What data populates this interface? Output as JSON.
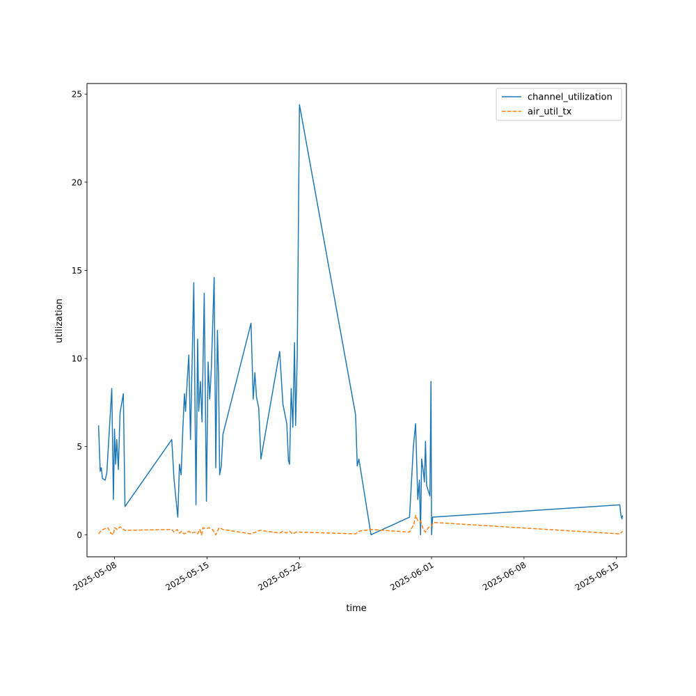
{
  "chart_data": {
    "type": "line",
    "xlabel": "time",
    "ylabel": "utilization",
    "x_range": [
      "2025-05-05T22:00",
      "2025-06-15T18:00"
    ],
    "ylim": [
      -1.25,
      25.6
    ],
    "x_ticks": [
      "2025-05-08",
      "2025-05-15",
      "2025-05-22",
      "2025-06-01",
      "2025-06-08",
      "2025-06-15"
    ],
    "y_ticks": [
      0,
      5,
      10,
      15,
      20,
      25
    ],
    "grid": false,
    "legend_position": "top-right",
    "series": [
      {
        "name": "channel_utilization",
        "color": "#1f77b4",
        "dash": "solid",
        "points": [
          [
            "2025-05-06T19:00",
            6.2
          ],
          [
            "2025-05-06T22:00",
            3.6
          ],
          [
            "2025-05-07T00:00",
            3.8
          ],
          [
            "2025-05-07T02:00",
            3.2
          ],
          [
            "2025-05-07T07:00",
            3.1
          ],
          [
            "2025-05-07T10:00",
            3.5
          ],
          [
            "2025-05-07T19:00",
            8.3
          ],
          [
            "2025-05-07T22:00",
            2.0
          ],
          [
            "2025-05-08T00:00",
            6.0
          ],
          [
            "2025-05-08T02:00",
            4.0
          ],
          [
            "2025-05-08T04:00",
            5.4
          ],
          [
            "2025-05-08T07:00",
            3.7
          ],
          [
            "2025-05-08T10:00",
            6.9
          ],
          [
            "2025-05-08T16:00",
            8.0
          ],
          [
            "2025-05-08T19:00",
            1.6
          ],
          [
            "2025-05-12T08:00",
            5.4
          ],
          [
            "2025-05-12T12:00",
            3.2
          ],
          [
            "2025-05-12T16:00",
            1.9
          ],
          [
            "2025-05-12T19:00",
            1.0
          ],
          [
            "2025-05-12T22:00",
            4.0
          ],
          [
            "2025-05-13T01:00",
            3.4
          ],
          [
            "2025-05-13T04:00",
            5.9
          ],
          [
            "2025-05-13T07:00",
            8.0
          ],
          [
            "2025-05-13T09:00",
            7.0
          ],
          [
            "2025-05-13T12:00",
            8.7
          ],
          [
            "2025-05-13T15:00",
            10.2
          ],
          [
            "2025-05-13T18:00",
            5.4
          ],
          [
            "2025-05-14T00:00",
            14.3
          ],
          [
            "2025-05-14T04:00",
            1.7
          ],
          [
            "2025-05-14T07:00",
            11.1
          ],
          [
            "2025-05-14T09:00",
            7.0
          ],
          [
            "2025-05-14T12:00",
            8.7
          ],
          [
            "2025-05-14T15:00",
            6.4
          ],
          [
            "2025-05-14T19:00",
            13.7
          ],
          [
            "2025-05-14T23:00",
            1.9
          ],
          [
            "2025-05-15T02:00",
            9.8
          ],
          [
            "2025-05-15T05:00",
            7.7
          ],
          [
            "2025-05-15T08:00",
            9.5
          ],
          [
            "2025-05-15T13:00",
            14.6
          ],
          [
            "2025-05-15T16:00",
            3.8
          ],
          [
            "2025-05-15T19:00",
            11.6
          ],
          [
            "2025-05-15T21:00",
            9.0
          ],
          [
            "2025-05-15T23:00",
            3.4
          ],
          [
            "2025-05-16T02:00",
            3.9
          ],
          [
            "2025-05-16T05:00",
            5.7
          ],
          [
            "2025-05-18T08:00",
            12.0
          ],
          [
            "2025-05-18T12:00",
            7.7
          ],
          [
            "2025-05-18T15:00",
            9.2
          ],
          [
            "2025-05-18T18:00",
            7.8
          ],
          [
            "2025-05-18T22:00",
            7.2
          ],
          [
            "2025-05-19T02:00",
            4.3
          ],
          [
            "2025-05-20T12:00",
            10.4
          ],
          [
            "2025-05-20T18:00",
            7.4
          ],
          [
            "2025-05-21T01:00",
            6.3
          ],
          [
            "2025-05-21T04:00",
            4.2
          ],
          [
            "2025-05-21T06:00",
            4.0
          ],
          [
            "2025-05-21T09:00",
            8.3
          ],
          [
            "2025-05-21T12:00",
            6.1
          ],
          [
            "2025-05-21T15:00",
            10.9
          ],
          [
            "2025-05-21T17:00",
            6.2
          ],
          [
            "2025-05-21T20:00",
            10.2
          ],
          [
            "2025-05-22T00:00",
            24.4
          ],
          [
            "2025-05-26T06:00",
            6.8
          ],
          [
            "2025-05-26T09:00",
            3.9
          ],
          [
            "2025-05-26T12:00",
            4.3
          ],
          [
            "2025-05-27T10:00",
            0.0
          ],
          [
            "2025-05-30T08:00",
            1.0
          ],
          [
            "2025-05-30T15:00",
            5.0
          ],
          [
            "2025-05-30T19:00",
            6.3
          ],
          [
            "2025-05-30T23:00",
            2.0
          ],
          [
            "2025-05-31T02:00",
            3.1
          ],
          [
            "2025-05-31T04:00",
            0.0
          ],
          [
            "2025-05-31T06:00",
            4.3
          ],
          [
            "2025-05-31T09:00",
            3.6
          ],
          [
            "2025-05-31T11:00",
            3.0
          ],
          [
            "2025-05-31T13:00",
            5.3
          ],
          [
            "2025-05-31T15:00",
            2.8
          ],
          [
            "2025-05-31T21:00",
            2.2
          ],
          [
            "2025-05-31T23:00",
            8.7
          ],
          [
            "2025-06-01T00:00",
            0.0
          ],
          [
            "2025-06-01T02:00",
            1.0
          ],
          [
            "2025-06-15T06:00",
            1.7
          ],
          [
            "2025-06-15T08:00",
            1.1
          ],
          [
            "2025-06-15T10:00",
            0.9
          ],
          [
            "2025-06-15T11:00",
            1.1
          ]
        ]
      },
      {
        "name": "air_util_tx",
        "color": "#ff7f0e",
        "dash": "dashed",
        "points": [
          [
            "2025-05-06T19:00",
            0.05
          ],
          [
            "2025-05-07T00:00",
            0.25
          ],
          [
            "2025-05-07T07:00",
            0.35
          ],
          [
            "2025-05-07T12:00",
            0.4
          ],
          [
            "2025-05-07T17:00",
            0.1
          ],
          [
            "2025-05-07T22:00",
            0.0
          ],
          [
            "2025-05-08T00:00",
            0.4
          ],
          [
            "2025-05-08T05:00",
            0.3
          ],
          [
            "2025-05-08T10:00",
            0.45
          ],
          [
            "2025-05-08T19:00",
            0.25
          ],
          [
            "2025-05-12T08:00",
            0.3
          ],
          [
            "2025-05-12T12:00",
            0.15
          ],
          [
            "2025-05-12T18:00",
            0.3
          ],
          [
            "2025-05-12T22:00",
            0.1
          ],
          [
            "2025-05-13T02:00",
            0.2
          ],
          [
            "2025-05-13T06:00",
            0.05
          ],
          [
            "2025-05-13T10:00",
            0.1
          ],
          [
            "2025-05-13T15:00",
            0.2
          ],
          [
            "2025-05-13T20:00",
            0.1
          ],
          [
            "2025-05-14T02:00",
            0.15
          ],
          [
            "2025-05-14T07:00",
            0.05
          ],
          [
            "2025-05-14T11:00",
            0.3
          ],
          [
            "2025-05-14T14:00",
            0.0
          ],
          [
            "2025-05-14T17:00",
            0.4
          ],
          [
            "2025-05-14T22:00",
            0.35
          ],
          [
            "2025-05-15T04:00",
            0.4
          ],
          [
            "2025-05-15T10:00",
            0.3
          ],
          [
            "2025-05-15T16:00",
            0.0
          ],
          [
            "2025-05-15T22:00",
            0.4
          ],
          [
            "2025-05-16T05:00",
            0.3
          ],
          [
            "2025-05-18T08:00",
            0.05
          ],
          [
            "2025-05-19T00:00",
            0.25
          ],
          [
            "2025-05-20T12:00",
            0.1
          ],
          [
            "2025-05-20T18:00",
            0.2
          ],
          [
            "2025-05-21T00:00",
            0.1
          ],
          [
            "2025-05-21T06:00",
            0.2
          ],
          [
            "2025-05-21T12:00",
            0.05
          ],
          [
            "2025-05-21T18:00",
            0.15
          ],
          [
            "2025-05-22T00:00",
            0.15
          ],
          [
            "2025-05-26T06:00",
            0.05
          ],
          [
            "2025-05-26T12:00",
            0.2
          ],
          [
            "2025-05-27T10:00",
            0.3
          ],
          [
            "2025-05-30T08:00",
            0.15
          ],
          [
            "2025-05-30T16:00",
            0.6
          ],
          [
            "2025-05-30T19:00",
            1.1
          ],
          [
            "2025-05-30T23:00",
            0.8
          ],
          [
            "2025-05-31T04:00",
            0.8
          ],
          [
            "2025-05-31T09:00",
            0.3
          ],
          [
            "2025-05-31T13:00",
            0.15
          ],
          [
            "2025-05-31T18:00",
            0.4
          ],
          [
            "2025-06-01T00:00",
            0.5
          ],
          [
            "2025-06-01T03:00",
            0.7
          ],
          [
            "2025-06-15T06:00",
            0.05
          ],
          [
            "2025-06-15T11:00",
            0.2
          ]
        ]
      }
    ]
  }
}
